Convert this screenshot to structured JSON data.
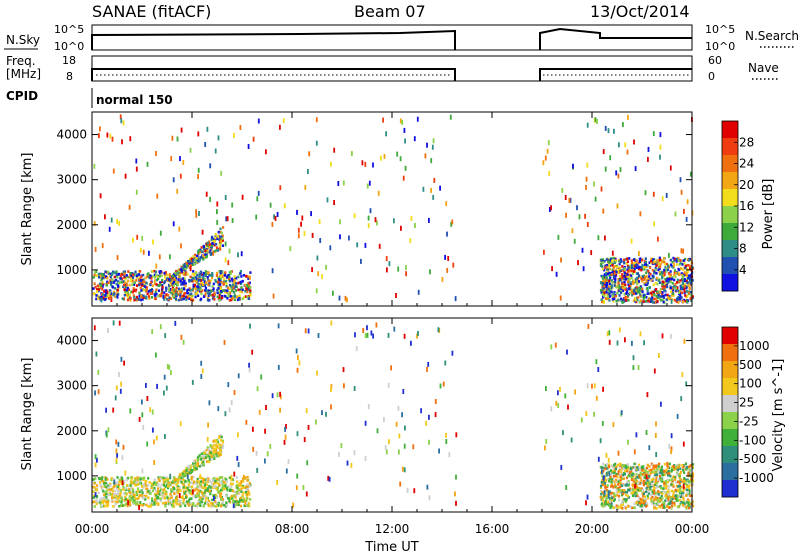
{
  "header": {
    "title": "SANAE (fitACF)",
    "beam": "Beam 07",
    "date": "13/Oct/2014"
  },
  "panels": {
    "nsky": {
      "label": "N.Sky",
      "ticks": [
        "10^5",
        "10^0"
      ],
      "right_label": "N.Search",
      "right_ticks": [
        "10^5",
        "10^0"
      ]
    },
    "freq": {
      "label": "Freq.",
      "unit": "[MHz]",
      "ticks": [
        "18",
        "8"
      ],
      "right_label": "Nave",
      "right_ticks": [
        "60",
        "0"
      ]
    },
    "cpid": {
      "label": "CPID",
      "value": "normal 150"
    }
  },
  "power_panel": {
    "ylabel": "Slant Range [km]",
    "yticks": [
      "4000",
      "3000",
      "2000",
      "1000"
    ],
    "colorbar": {
      "label": "Power [dB]",
      "ticks": [
        "28",
        "24",
        "20",
        "16",
        "12",
        "8",
        "4"
      ],
      "colors": [
        "#1010e0",
        "#2050b0",
        "#2e8d86",
        "#3faa3c",
        "#8cd14a",
        "#f2dd1c",
        "#f3a614",
        "#f07010",
        "#ef3d10",
        "#e00000"
      ]
    }
  },
  "velocity_panel": {
    "ylabel": "Slant Range [km]",
    "yticks": [
      "4000",
      "3000",
      "2000",
      "1000"
    ],
    "colorbar": {
      "label": "Velocity [m s^-1]",
      "ticks": [
        "1000",
        "500",
        "100",
        "25",
        "-25",
        "-100",
        "-500",
        "-1000"
      ],
      "colors": [
        "#1f2fd0",
        "#2a6fa0",
        "#2f8f7a",
        "#3fb03a",
        "#8cd14a",
        "#cfcfcf",
        "#f2c81c",
        "#f3a614",
        "#f07010",
        "#e00000"
      ]
    }
  },
  "xaxis": {
    "label": "Time UT",
    "ticks": [
      "00:00",
      "04:00",
      "08:00",
      "12:00",
      "16:00",
      "20:00",
      "00:00"
    ]
  },
  "chart_data": {
    "type": "heatmap",
    "title": "SANAE (fitACF)",
    "xlabel": "Time UT",
    "ylabel": "Slant Range [km]",
    "x_range_hours": [
      0,
      24
    ],
    "y_range_km": [
      200,
      4500
    ],
    "data_gap_hours": [
      14.6,
      18.0
    ],
    "series": [
      {
        "name": "Power [dB]",
        "scale": [
          0,
          32
        ]
      },
      {
        "name": "Velocity [m s^-1]",
        "scale": [
          -1000,
          1000
        ]
      }
    ],
    "echo_regions": [
      {
        "t_start": 0.0,
        "t_end": 6.3,
        "range_min_km": 350,
        "range_max_km": 1000
      },
      {
        "t_start": 3.0,
        "t_end": 5.2,
        "range_min_km": 800,
        "range_max_km": 2000
      },
      {
        "t_start": 20.3,
        "t_end": 24.0,
        "range_min_km": 300,
        "range_max_km": 1300
      }
    ],
    "nsky_level": 4.5,
    "nsearch_level": 4.3,
    "frequency_mhz": 10.0,
    "nave": 20
  }
}
